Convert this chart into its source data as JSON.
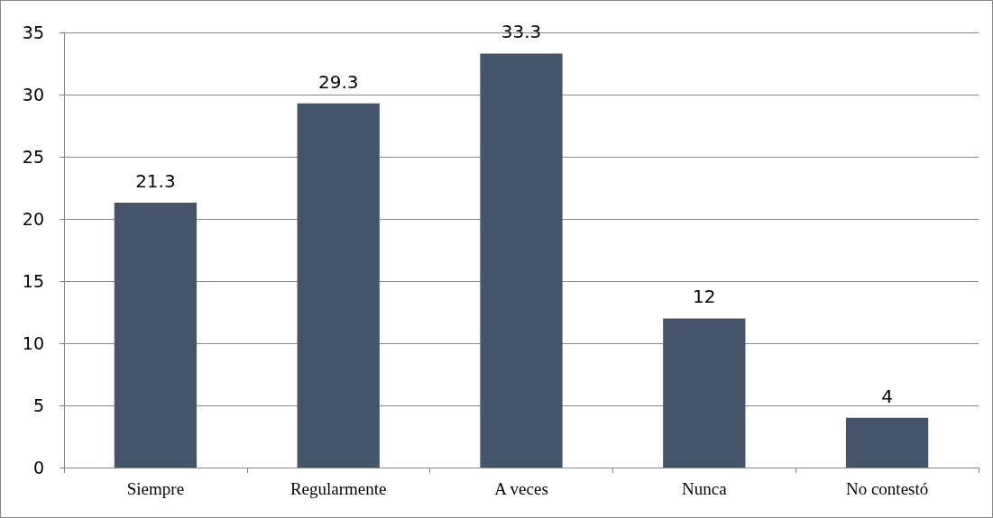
{
  "chart_data": {
    "type": "bar",
    "categories": [
      "Siempre",
      "Regularmente",
      "A veces",
      "Nunca",
      "No contestó"
    ],
    "values": [
      21.3,
      29.3,
      33.3,
      12,
      4
    ],
    "color": "#44546a",
    "ylim": [
      0,
      35
    ],
    "yticks": [
      0,
      5,
      10,
      15,
      20,
      25,
      30,
      35
    ],
    "grid": "y",
    "data_labels": true
  }
}
